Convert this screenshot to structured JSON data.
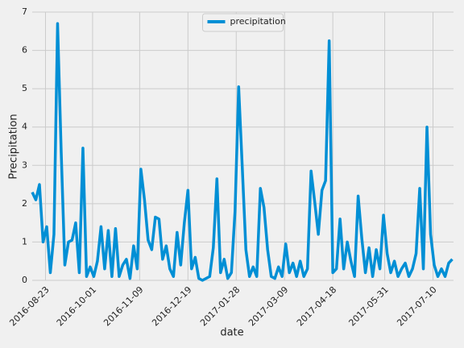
{
  "chart_data": {
    "type": "line",
    "xlabel": "date",
    "ylabel": "Precipitation",
    "x": [
      "2016-08-12",
      "2016-08-15",
      "2016-08-18",
      "2016-08-21",
      "2016-08-24",
      "2016-08-27",
      "2016-08-30",
      "2016-09-02",
      "2016-09-05",
      "2016-09-08",
      "2016-09-11",
      "2016-09-14",
      "2016-09-17",
      "2016-09-20",
      "2016-09-23",
      "2016-09-26",
      "2016-09-29",
      "2016-10-02",
      "2016-10-05",
      "2016-10-08",
      "2016-10-11",
      "2016-10-14",
      "2016-10-17",
      "2016-10-20",
      "2016-10-23",
      "2016-10-26",
      "2016-10-29",
      "2016-11-01",
      "2016-11-04",
      "2016-11-07",
      "2016-11-10",
      "2016-11-13",
      "2016-11-16",
      "2016-11-19",
      "2016-11-22",
      "2016-11-25",
      "2016-11-28",
      "2016-12-01",
      "2016-12-04",
      "2016-12-07",
      "2016-12-10",
      "2016-12-13",
      "2016-12-16",
      "2016-12-19",
      "2016-12-22",
      "2016-12-25",
      "2016-12-28",
      "2016-12-31",
      "2017-01-03",
      "2017-01-06",
      "2017-01-09",
      "2017-01-12",
      "2017-01-15",
      "2017-01-18",
      "2017-01-21",
      "2017-01-24",
      "2017-01-27",
      "2017-01-30",
      "2017-02-02",
      "2017-02-05",
      "2017-02-08",
      "2017-02-11",
      "2017-02-14",
      "2017-02-17",
      "2017-02-20",
      "2017-02-23",
      "2017-02-26",
      "2017-03-01",
      "2017-03-04",
      "2017-03-07",
      "2017-03-10",
      "2017-03-13",
      "2017-03-16",
      "2017-03-19",
      "2017-03-22",
      "2017-03-25",
      "2017-03-28",
      "2017-03-31",
      "2017-04-03",
      "2017-04-06",
      "2017-04-09",
      "2017-04-12",
      "2017-04-15",
      "2017-04-18",
      "2017-04-21",
      "2017-04-24",
      "2017-04-27",
      "2017-04-30",
      "2017-05-03",
      "2017-05-06",
      "2017-05-09",
      "2017-05-12",
      "2017-05-15",
      "2017-05-18",
      "2017-05-21",
      "2017-05-24",
      "2017-05-27",
      "2017-05-30",
      "2017-06-02",
      "2017-06-05",
      "2017-06-08",
      "2017-06-11",
      "2017-06-14",
      "2017-06-17",
      "2017-06-20",
      "2017-06-23",
      "2017-06-26",
      "2017-06-29",
      "2017-07-02",
      "2017-07-05",
      "2017-07-08",
      "2017-07-11",
      "2017-07-14",
      "2017-07-17",
      "2017-07-20",
      "2017-07-23",
      "2017-07-26"
    ],
    "series": [
      {
        "name": "precipitation",
        "color": "#008fd5",
        "values": [
          2.3,
          2.1,
          2.5,
          1.0,
          1.4,
          0.2,
          1.2,
          6.7,
          3.35,
          0.4,
          1.0,
          1.05,
          1.5,
          0.2,
          3.45,
          0.1,
          0.35,
          0.1,
          0.5,
          1.4,
          0.3,
          1.3,
          0.1,
          1.35,
          0.1,
          0.4,
          0.55,
          0.05,
          0.9,
          0.3,
          2.9,
          2.1,
          1.05,
          0.8,
          1.65,
          1.6,
          0.55,
          0.9,
          0.3,
          0.1,
          1.25,
          0.4,
          1.5,
          2.35,
          0.3,
          0.6,
          0.05,
          0,
          0.05,
          0.1,
          0.85,
          2.65,
          0.2,
          0.55,
          0.05,
          0.2,
          1.8,
          5.05,
          2.95,
          0.8,
          0.1,
          0.35,
          0.1,
          2.4,
          1.9,
          0.8,
          0.1,
          0.05,
          0.35,
          0.1,
          0.95,
          0.2,
          0.45,
          0.1,
          0.5,
          0.1,
          0.3,
          2.85,
          2.05,
          1.2,
          2.35,
          2.6,
          6.25,
          0.2,
          0.3,
          1.6,
          0.3,
          1.0,
          0.5,
          0.1,
          2.2,
          1.1,
          0.2,
          0.85,
          0.1,
          0.8,
          0.3,
          1.7,
          0.7,
          0.2,
          0.5,
          0.1,
          0.3,
          0.45,
          0.1,
          0.3,
          0.7,
          2.4,
          0.3,
          4.0,
          1.2,
          0.4,
          0.1,
          0.3,
          0.1,
          0.45,
          0.55
        ]
      }
    ],
    "xlim": [
      "2016-08-12",
      "2017-07-27"
    ],
    "xticks": [
      "2016-08-23",
      "2016-10-01",
      "2016-11-09",
      "2016-12-19",
      "2017-01-28",
      "2017-03-09",
      "2017-04-18",
      "2017-05-31",
      "2017-07-10"
    ],
    "ylim": [
      0,
      7
    ],
    "yticks": [
      0,
      1,
      2,
      3,
      4,
      5,
      6,
      7
    ],
    "grid": true,
    "legend": "upper center"
  }
}
